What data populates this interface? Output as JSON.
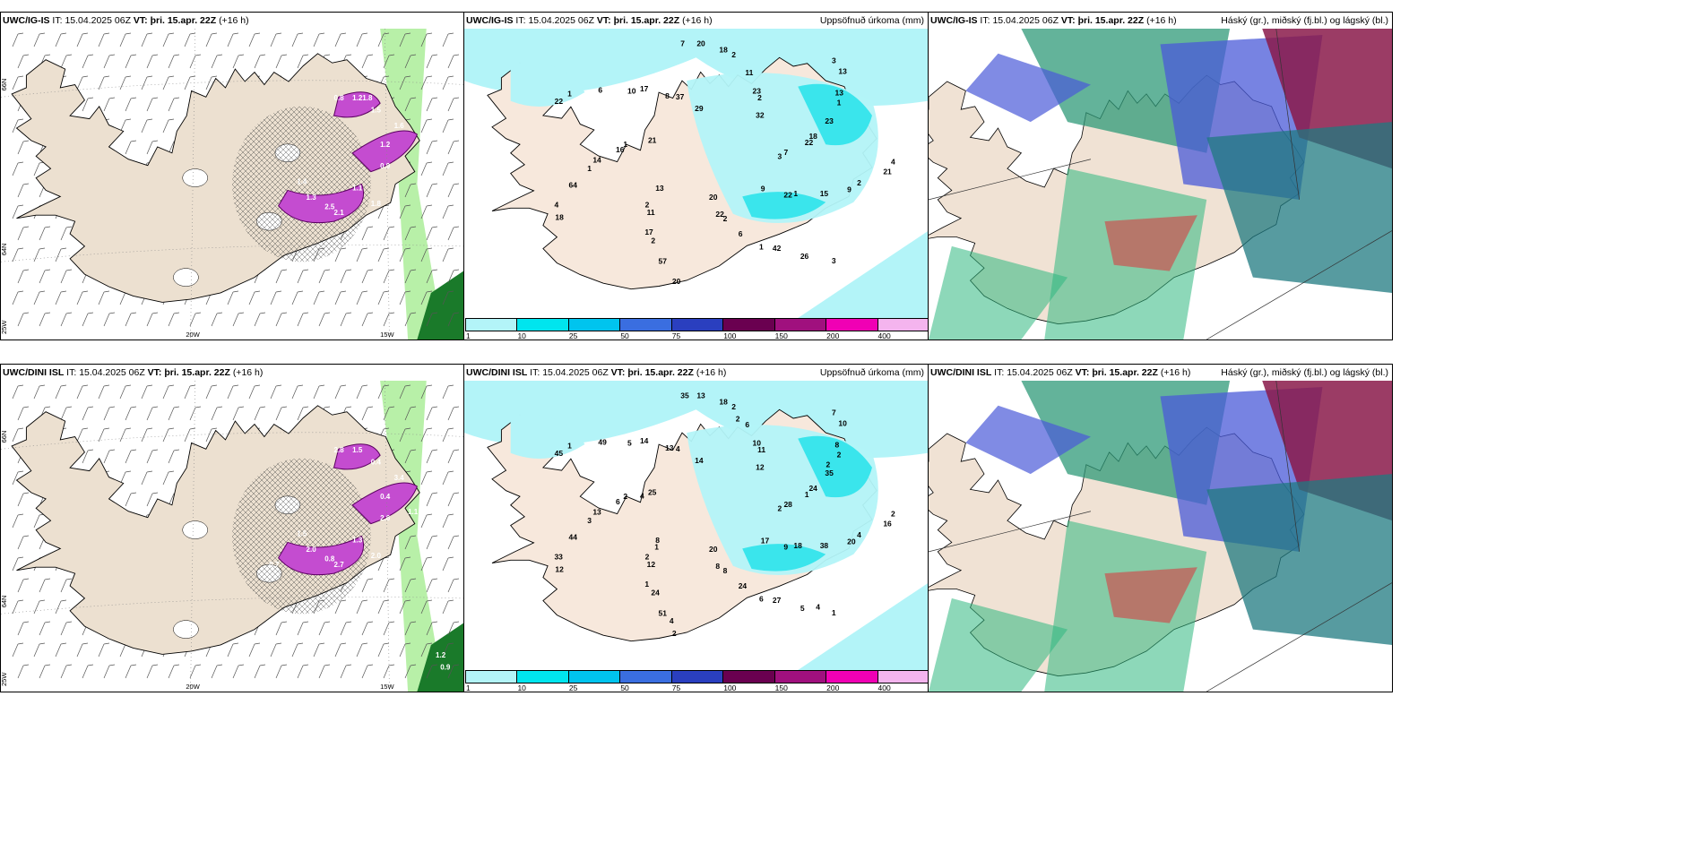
{
  "panels": [
    {
      "model": "UWC/IG-IS",
      "it_label": "IT:",
      "it": "15.04.2025 06Z",
      "vt_label": "VT:",
      "vt": "þri. 15.apr. 22Z",
      "lead": "(+16 h)",
      "right": ""
    },
    {
      "model": "UWC/IG-IS",
      "it_label": "IT:",
      "it": "15.04.2025 06Z",
      "vt_label": "VT:",
      "vt": "þri. 15.apr. 22Z",
      "lead": "(+16 h)",
      "right": "Uppsöfnuð úrkoma (mm)"
    },
    {
      "model": "UWC/IG-IS",
      "it_label": "IT:",
      "it": "15.04.2025 06Z",
      "vt_label": "VT:",
      "vt": "þri. 15.apr. 22Z",
      "lead": "(+16 h)",
      "right": "Háský (gr.), miðský (fj.bl.) og lágský (bl.)"
    },
    {
      "model": "UWC/DINI ISL",
      "it_label": "IT:",
      "it": "15.04.2025 06Z",
      "vt_label": "VT:",
      "vt": "þri. 15.apr. 22Z",
      "lead": "(+16 h)",
      "right": ""
    },
    {
      "model": "UWC/DINI ISL",
      "it_label": "IT:",
      "it": "15.04.2025 06Z",
      "vt_label": "VT:",
      "vt": "þri. 15.apr. 22Z",
      "lead": "(+16 h)",
      "right": "Uppsöfnuð úrkoma (mm)"
    },
    {
      "model": "UWC/DINI ISL",
      "it_label": "IT:",
      "it": "15.04.2025 06Z",
      "vt_label": "VT:",
      "vt": "þri. 15.apr. 22Z",
      "lead": "(+16 h)",
      "right": "Háský (gr.), miðský (fj.bl.) og lágský (bl.)"
    }
  ],
  "coords": {
    "lat66": "66N",
    "lat64": "64N",
    "lon20": "20W",
    "lon15": "15W",
    "lon25": "25W"
  },
  "colorbar": {
    "ticks": [
      "1",
      "10",
      "25",
      "50",
      "75",
      "100",
      "150",
      "200",
      "400"
    ],
    "colors": [
      "#b3f4f8",
      "#00e5ee",
      "#00c4ee",
      "#3a6ee0",
      "#2a3fbf",
      "#6a0050",
      "#a0107e",
      "#f000b4",
      "#f4b4ee"
    ]
  },
  "precip_top": [
    "3",
    "2",
    "2",
    "3",
    "1",
    "1",
    "20",
    "37",
    "9",
    "4",
    "2",
    "1",
    "1",
    "22",
    "17",
    "20",
    "22",
    "14",
    "13",
    "22",
    "17",
    "21",
    "13",
    "11",
    "26",
    "21",
    "23",
    "57",
    "29",
    "15",
    "64",
    "32",
    "6",
    "6",
    "7",
    "11",
    "18",
    "9",
    "16",
    "13",
    "20",
    "8",
    "2",
    "18",
    "23",
    "42",
    "22",
    "18",
    "2",
    "7",
    "1",
    "1",
    "3",
    "2",
    "10",
    "4"
  ],
  "precip_bot": [
    "2",
    "2",
    "2",
    "1",
    "2",
    "2",
    "2",
    "4",
    "20",
    "33",
    "11",
    "6",
    "1",
    "1",
    "1",
    "13",
    "9",
    "13",
    "10",
    "8",
    "14",
    "16",
    "8",
    "6",
    "5",
    "25",
    "35",
    "51",
    "14",
    "38",
    "44",
    "12",
    "24",
    "49",
    "28",
    "12",
    "18",
    "17",
    "6",
    "8",
    "20",
    "13",
    "4",
    "12",
    "10",
    "27",
    "45",
    "24",
    "24",
    "35",
    "18",
    "3",
    "7",
    "8",
    "5",
    "2",
    "1",
    "2",
    "4",
    "4",
    "2",
    "4"
  ],
  "wind_top_labels": [
    "0.8",
    "1.21.8",
    "1.5",
    "1.6",
    "1.2",
    "0.9",
    "1.1",
    "2.5",
    "1.3",
    "2.1",
    "1.4",
    "1.8"
  ],
  "wind_bot_labels": [
    "2.8",
    "1.5",
    "0.4",
    "3.4",
    "0.4",
    "2.6",
    "1.3",
    "0.8",
    "2.0",
    "2.7",
    "1.5",
    "2.0",
    "0.7",
    "1.2",
    "0.9",
    "1.1"
  ]
}
